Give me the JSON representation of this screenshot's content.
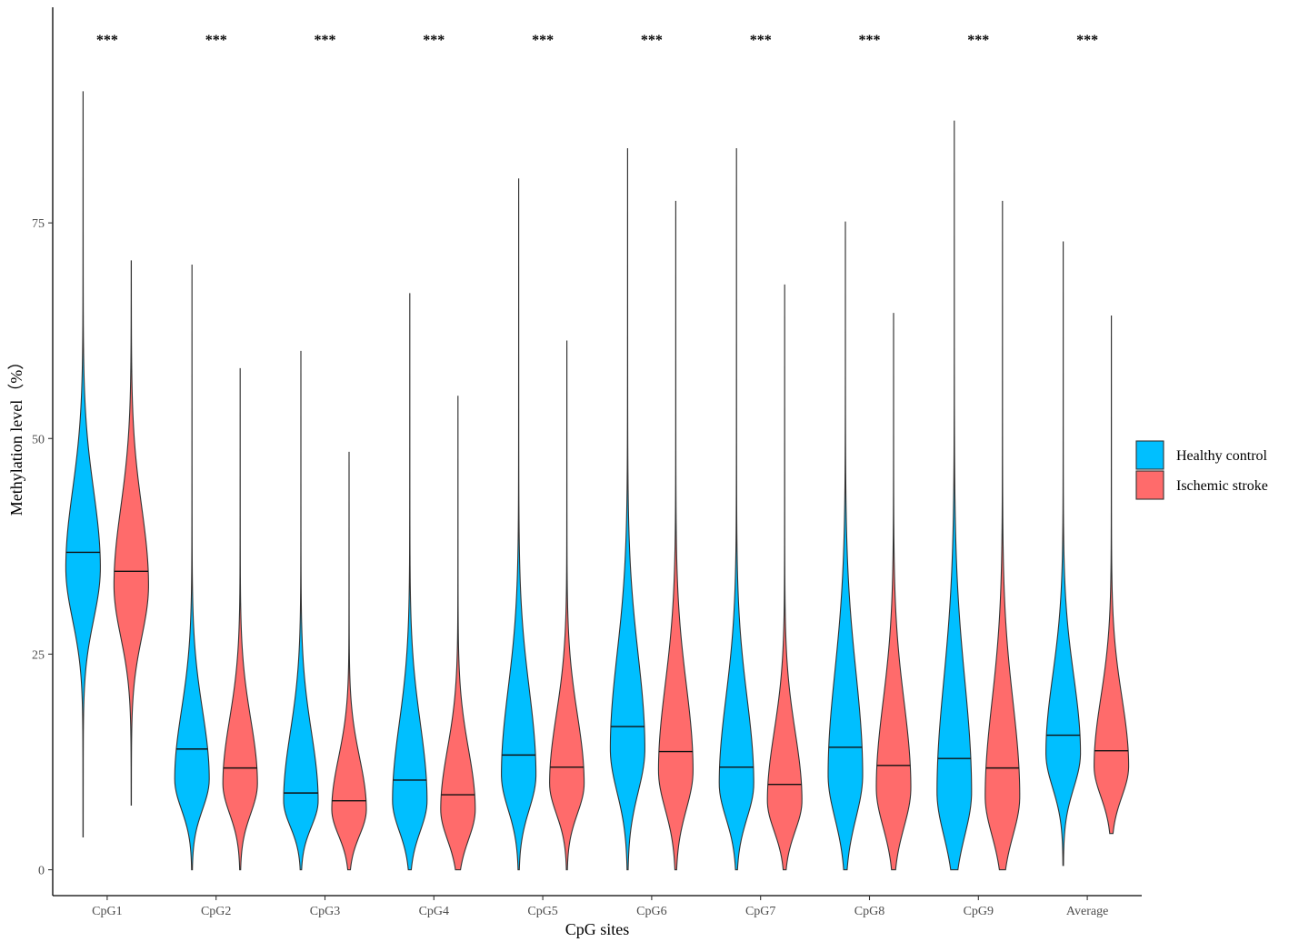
{
  "chart_data": {
    "type": "violin",
    "xlabel": "CpG sites",
    "ylabel": "Methylation level（%）",
    "ylim": [
      -3,
      100
    ],
    "yticks": [
      0,
      25,
      50,
      75
    ],
    "categories": [
      "CpG1",
      "CpG2",
      "CpG3",
      "CpG4",
      "CpG5",
      "CpG6",
      "CpG7",
      "CpG8",
      "CpG9",
      "Average"
    ],
    "significance": [
      "***",
      "***",
      "***",
      "***",
      "***",
      "***",
      "***",
      "***",
      "***",
      "***"
    ],
    "legend_position": "right",
    "grid": false,
    "series": [
      {
        "name": "Healthy control",
        "color": "#00BFFF",
        "median": [
          36.8,
          14.0,
          8.9,
          10.4,
          13.3,
          16.6,
          11.9,
          14.2,
          12.9,
          15.6
        ],
        "min": [
          3.8,
          0,
          0,
          0,
          0,
          0,
          0,
          0,
          0,
          0.5
        ],
        "max": [
          90.2,
          70.1,
          60.1,
          66.8,
          80.1,
          83.6,
          83.6,
          75.1,
          86.8,
          72.8
        ],
        "peak": [
          35,
          10.5,
          8,
          8,
          11,
          14,
          10,
          11,
          9,
          13.5
        ],
        "sd_lo": [
          6,
          3.5,
          3,
          3.5,
          4,
          5,
          4,
          5,
          5,
          4
        ],
        "sd_hi": [
          9,
          8,
          8,
          9,
          10,
          11,
          10,
          12,
          13,
          9
        ]
      },
      {
        "name": "Ischemic stroke",
        "color": "#FF6B6B",
        "median": [
          34.6,
          11.8,
          8.0,
          8.7,
          11.9,
          13.7,
          9.9,
          12.1,
          11.8,
          13.8
        ],
        "min": [
          7.5,
          0,
          0,
          0,
          0,
          0,
          0,
          0,
          0,
          4.2
        ],
        "max": [
          70.6,
          58.1,
          48.4,
          54.9,
          61.3,
          77.5,
          67.8,
          64.5,
          77.5,
          64.2
        ],
        "peak": [
          33,
          10,
          7,
          7,
          10,
          11.5,
          8,
          9.5,
          8.5,
          12
        ],
        "sd_lo": [
          6,
          3.5,
          3,
          3.5,
          3.5,
          4.5,
          3.5,
          4.5,
          4.5,
          3.5
        ],
        "sd_hi": [
          9,
          7.5,
          6,
          7,
          8,
          10,
          8,
          10,
          11,
          8
        ]
      }
    ]
  }
}
